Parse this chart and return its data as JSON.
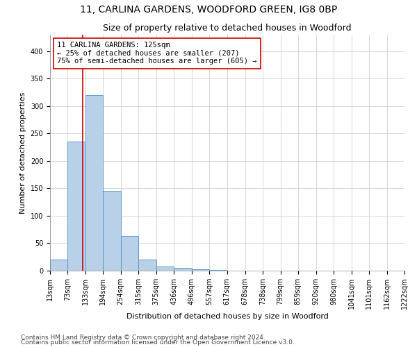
{
  "title": "11, CARLINA GARDENS, WOODFORD GREEN, IG8 0BP",
  "subtitle": "Size of property relative to detached houses in Woodford",
  "xlabel": "Distribution of detached houses by size in Woodford",
  "ylabel": "Number of detached properties",
  "bin_edges": [
    13,
    73,
    133,
    194,
    254,
    315,
    375,
    436,
    496,
    557,
    617,
    678,
    738,
    799,
    859,
    920,
    980,
    1041,
    1101,
    1162,
    1222
  ],
  "bar_heights": [
    20,
    235,
    320,
    145,
    63,
    20,
    8,
    5,
    2,
    1,
    0,
    0,
    0,
    0,
    0,
    0,
    0,
    0,
    0,
    0
  ],
  "bar_color": "#b8d0e8",
  "bar_edge_color": "#5090c0",
  "property_size": 125,
  "red_line_color": "#cc0000",
  "annotation_text": "11 CARLINA GARDENS: 125sqm\n← 25% of detached houses are smaller (207)\n75% of semi-detached houses are larger (605) →",
  "annotation_box_color": "#ffffff",
  "annotation_box_edge": "#cc0000",
  "footnote1": "Contains HM Land Registry data © Crown copyright and database right 2024.",
  "footnote2": "Contains public sector information licensed under the Open Government Licence v3.0.",
  "yticks": [
    0,
    50,
    100,
    150,
    200,
    250,
    300,
    350,
    400
  ],
  "ylim": [
    0,
    430
  ],
  "background_color": "#ffffff",
  "grid_color": "#c8c8c8",
  "title_fontsize": 10,
  "subtitle_fontsize": 9,
  "axis_label_fontsize": 8,
  "tick_fontsize": 7,
  "annotation_fontsize": 7.5,
  "footnote_fontsize": 6.5
}
